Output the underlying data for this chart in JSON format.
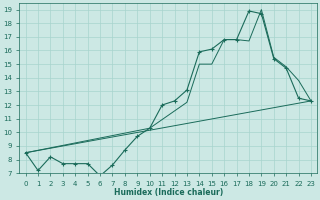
{
  "xlabel": "Humidex (Indice chaleur)",
  "bg_color": "#cce8e4",
  "grid_color": "#a8d4ce",
  "line_color": "#1a6b5a",
  "xlim": [
    -0.5,
    23.5
  ],
  "ylim": [
    7,
    19.5
  ],
  "xticks": [
    0,
    1,
    2,
    3,
    4,
    5,
    6,
    7,
    8,
    9,
    10,
    11,
    12,
    13,
    14,
    15,
    16,
    17,
    18,
    19,
    20,
    21,
    22,
    23
  ],
  "yticks": [
    7,
    8,
    9,
    10,
    11,
    12,
    13,
    14,
    15,
    16,
    17,
    18,
    19
  ],
  "series1_x": [
    0,
    1,
    2,
    3,
    4,
    5,
    6,
    7,
    8,
    9,
    10,
    11,
    12,
    13,
    14,
    15,
    16,
    17,
    18,
    19,
    20,
    21,
    22,
    23
  ],
  "series1_y": [
    8.5,
    7.2,
    8.2,
    7.7,
    7.7,
    7.7,
    6.8,
    7.6,
    8.7,
    9.7,
    10.3,
    12.0,
    12.3,
    13.1,
    15.9,
    16.1,
    16.8,
    16.8,
    18.9,
    18.7,
    15.4,
    14.7,
    12.5,
    12.3
  ],
  "series2_x": [
    0,
    23
  ],
  "series2_y": [
    8.5,
    12.3
  ],
  "series3_x": [
    0,
    10,
    13,
    14,
    15,
    16,
    17,
    18,
    19,
    20,
    21,
    22,
    23
  ],
  "series3_y": [
    8.5,
    10.3,
    12.2,
    15.0,
    15.0,
    16.8,
    16.8,
    16.7,
    19.0,
    15.5,
    14.8,
    13.8,
    12.3
  ]
}
